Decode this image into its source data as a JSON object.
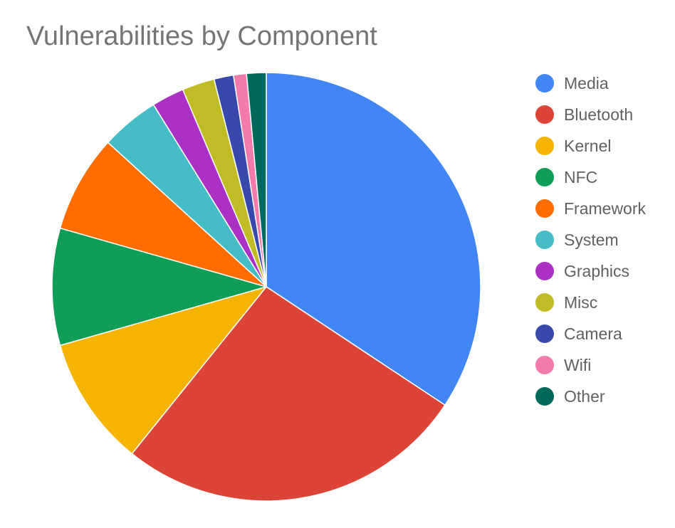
{
  "chart_data": {
    "type": "pie",
    "title": "Vulnerabilities by Component",
    "legend_position": "right",
    "slices": [
      {
        "label": "Media",
        "value": 35.0,
        "color": "#4285F4"
      },
      {
        "label": "Bluetooth",
        "value": 27.0,
        "color": "#DB4437"
      },
      {
        "label": "Kernel",
        "value": 10.0,
        "color": "#F4B400"
      },
      {
        "label": "NFC",
        "value": 9.0,
        "color": "#0F9D58"
      },
      {
        "label": "Framework",
        "value": 7.5,
        "color": "#FF6D00"
      },
      {
        "label": "System",
        "value": 4.5,
        "color": "#46BDC6"
      },
      {
        "label": "Graphics",
        "value": 2.5,
        "color": "#AB30C4"
      },
      {
        "label": "Misc",
        "value": 2.5,
        "color": "#C0BC26"
      },
      {
        "label": "Camera",
        "value": 1.5,
        "color": "#3949AB"
      },
      {
        "label": "Wifi",
        "value": 1.0,
        "color": "#F27AAC"
      },
      {
        "label": "Other",
        "value": 1.5,
        "color": "#00695C"
      }
    ]
  }
}
